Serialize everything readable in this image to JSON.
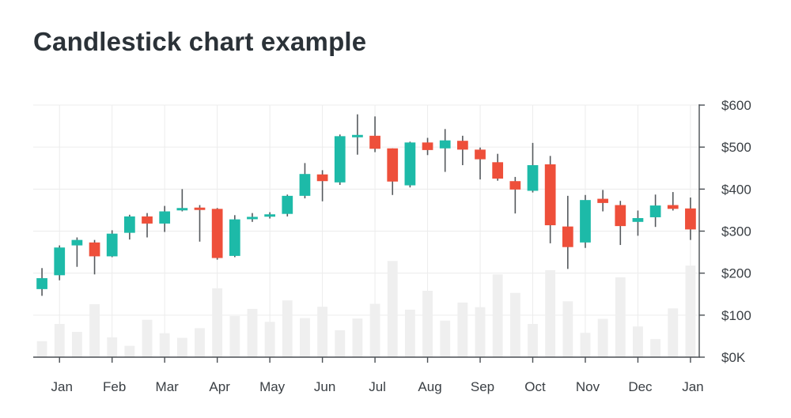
{
  "title": "Candlestick chart example",
  "colors": {
    "up": "#1dbaa8",
    "down": "#ee4f3a",
    "volume": "#efefef",
    "grid": "#ececec",
    "axis": "#4a4f54"
  },
  "chart_data": {
    "type": "candlestick",
    "title": "Candlestick chart example",
    "xlabel": "",
    "ylabel": "",
    "ylim": [
      0,
      600
    ],
    "grid": true,
    "y_ticks": [
      {
        "value": 0,
        "label": "$0K"
      },
      {
        "value": 100,
        "label": "$100"
      },
      {
        "value": 200,
        "label": "$200"
      },
      {
        "value": 300,
        "label": "$300"
      },
      {
        "value": 400,
        "label": "$400"
      },
      {
        "value": 500,
        "label": "$500"
      },
      {
        "value": 600,
        "label": "$600"
      }
    ],
    "x_ticks": [
      {
        "label": "Jan",
        "index": 1.5
      },
      {
        "label": "Feb",
        "index": 4.5
      },
      {
        "label": "Mar",
        "index": 7.5
      },
      {
        "label": "Apr",
        "index": 10.5
      },
      {
        "label": "May",
        "index": 13.5
      },
      {
        "label": "Jun",
        "index": 16.5
      },
      {
        "label": "Jul",
        "index": 19.5
      },
      {
        "label": "Aug",
        "index": 22.5
      },
      {
        "label": "Sep",
        "index": 25.5
      },
      {
        "label": "Oct",
        "index": 28.5
      },
      {
        "label": "Nov",
        "index": 31.5
      },
      {
        "label": "Dec",
        "index": 34.5
      },
      {
        "label": "Jan",
        "index": 37.5
      }
    ],
    "candles": [
      {
        "open": 162,
        "close": 188,
        "high": 212,
        "low": 146,
        "volume": 38
      },
      {
        "open": 195,
        "close": 261,
        "high": 266,
        "low": 183,
        "volume": 79
      },
      {
        "open": 266,
        "close": 279,
        "high": 285,
        "low": 215,
        "volume": 60
      },
      {
        "open": 273,
        "close": 240,
        "high": 279,
        "low": 197,
        "volume": 126
      },
      {
        "open": 240,
        "close": 294,
        "high": 302,
        "low": 238,
        "volume": 47
      },
      {
        "open": 296,
        "close": 335,
        "high": 339,
        "low": 280,
        "volume": 27
      },
      {
        "open": 335,
        "close": 318,
        "high": 343,
        "low": 285,
        "volume": 89
      },
      {
        "open": 318,
        "close": 347,
        "high": 360,
        "low": 298,
        "volume": 57
      },
      {
        "open": 350,
        "close": 355,
        "high": 400,
        "low": 347,
        "volume": 46
      },
      {
        "open": 356,
        "close": 351,
        "high": 362,
        "low": 275,
        "volume": 69
      },
      {
        "open": 353,
        "close": 236,
        "high": 355,
        "low": 232,
        "volume": 164
      },
      {
        "open": 241,
        "close": 328,
        "high": 338,
        "low": 238,
        "volume": 98
      },
      {
        "open": 331,
        "close": 334,
        "high": 343,
        "low": 322,
        "volume": 115
      },
      {
        "open": 336,
        "close": 340,
        "high": 345,
        "low": 330,
        "volume": 84
      },
      {
        "open": 341,
        "close": 384,
        "high": 387,
        "low": 335,
        "volume": 135
      },
      {
        "open": 384,
        "close": 436,
        "high": 462,
        "low": 378,
        "volume": 93
      },
      {
        "open": 435,
        "close": 419,
        "high": 445,
        "low": 371,
        "volume": 120
      },
      {
        "open": 416,
        "close": 526,
        "high": 530,
        "low": 410,
        "volume": 64
      },
      {
        "open": 527,
        "close": 529,
        "high": 578,
        "low": 482,
        "volume": 92
      },
      {
        "open": 527,
        "close": 496,
        "high": 573,
        "low": 488,
        "volume": 127
      },
      {
        "open": 497,
        "close": 418,
        "high": 497,
        "low": 386,
        "volume": 229
      },
      {
        "open": 409,
        "close": 511,
        "high": 513,
        "low": 404,
        "volume": 113
      },
      {
        "open": 511,
        "close": 493,
        "high": 522,
        "low": 481,
        "volume": 158
      },
      {
        "open": 497,
        "close": 516,
        "high": 543,
        "low": 441,
        "volume": 87
      },
      {
        "open": 515,
        "close": 494,
        "high": 527,
        "low": 457,
        "volume": 130
      },
      {
        "open": 494,
        "close": 471,
        "high": 499,
        "low": 423,
        "volume": 119
      },
      {
        "open": 464,
        "close": 425,
        "high": 484,
        "low": 420,
        "volume": 197
      },
      {
        "open": 419,
        "close": 399,
        "high": 429,
        "low": 342,
        "volume": 153
      },
      {
        "open": 396,
        "close": 457,
        "high": 510,
        "low": 392,
        "volume": 79
      },
      {
        "open": 459,
        "close": 314,
        "high": 479,
        "low": 271,
        "volume": 207
      },
      {
        "open": 311,
        "close": 262,
        "high": 384,
        "low": 210,
        "volume": 133
      },
      {
        "open": 273,
        "close": 374,
        "high": 386,
        "low": 260,
        "volume": 58
      },
      {
        "open": 377,
        "close": 367,
        "high": 398,
        "low": 347,
        "volume": 91
      },
      {
        "open": 362,
        "close": 312,
        "high": 372,
        "low": 267,
        "volume": 190
      },
      {
        "open": 322,
        "close": 331,
        "high": 349,
        "low": 289,
        "volume": 73
      },
      {
        "open": 333,
        "close": 361,
        "high": 387,
        "low": 310,
        "volume": 43
      },
      {
        "open": 362,
        "close": 353,
        "high": 393,
        "low": 349,
        "volume": 116
      },
      {
        "open": 354,
        "close": 304,
        "high": 380,
        "low": 279,
        "volume": 218
      }
    ]
  }
}
